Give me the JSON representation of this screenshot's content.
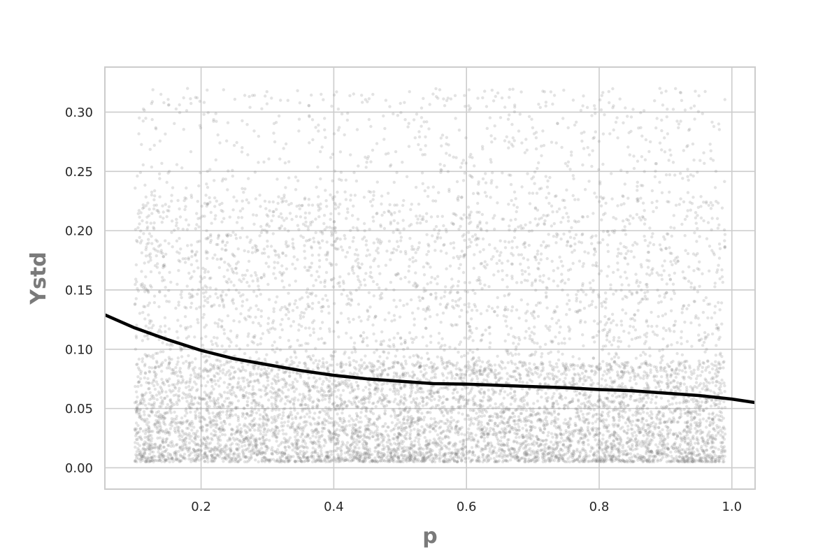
{
  "chart_data": {
    "type": "scatter",
    "title": "",
    "xlabel": "p",
    "ylabel": "Ystd",
    "xlim": [
      0.055,
      1.035
    ],
    "ylim": [
      -0.018,
      0.338
    ],
    "xticks": [
      "0.2",
      "0.4",
      "0.6",
      "0.8",
      "1.0"
    ],
    "yticks": [
      "0.00",
      "0.05",
      "0.10",
      "0.15",
      "0.20",
      "0.25",
      "0.30"
    ],
    "grid": true,
    "legend": "none",
    "point_color": "#808080",
    "line_color": "#000000",
    "scatter_summary": {
      "x_range": [
        0.1,
        0.99
      ],
      "dense_band_y": [
        0.005,
        0.23
      ],
      "sparse_band_y": [
        0.23,
        0.32
      ]
    },
    "series": [
      {
        "kind": "trend",
        "x": [
          0.055,
          0.1,
          0.15,
          0.2,
          0.25,
          0.3,
          0.35,
          0.4,
          0.45,
          0.5,
          0.55,
          0.6,
          0.65,
          0.7,
          0.75,
          0.8,
          0.85,
          0.9,
          0.95,
          1.0,
          1.035
        ],
        "y": [
          0.129,
          0.118,
          0.108,
          0.099,
          0.092,
          0.087,
          0.082,
          0.078,
          0.075,
          0.073,
          0.071,
          0.0705,
          0.0695,
          0.0685,
          0.0675,
          0.066,
          0.065,
          0.063,
          0.061,
          0.058,
          0.055
        ]
      }
    ]
  }
}
